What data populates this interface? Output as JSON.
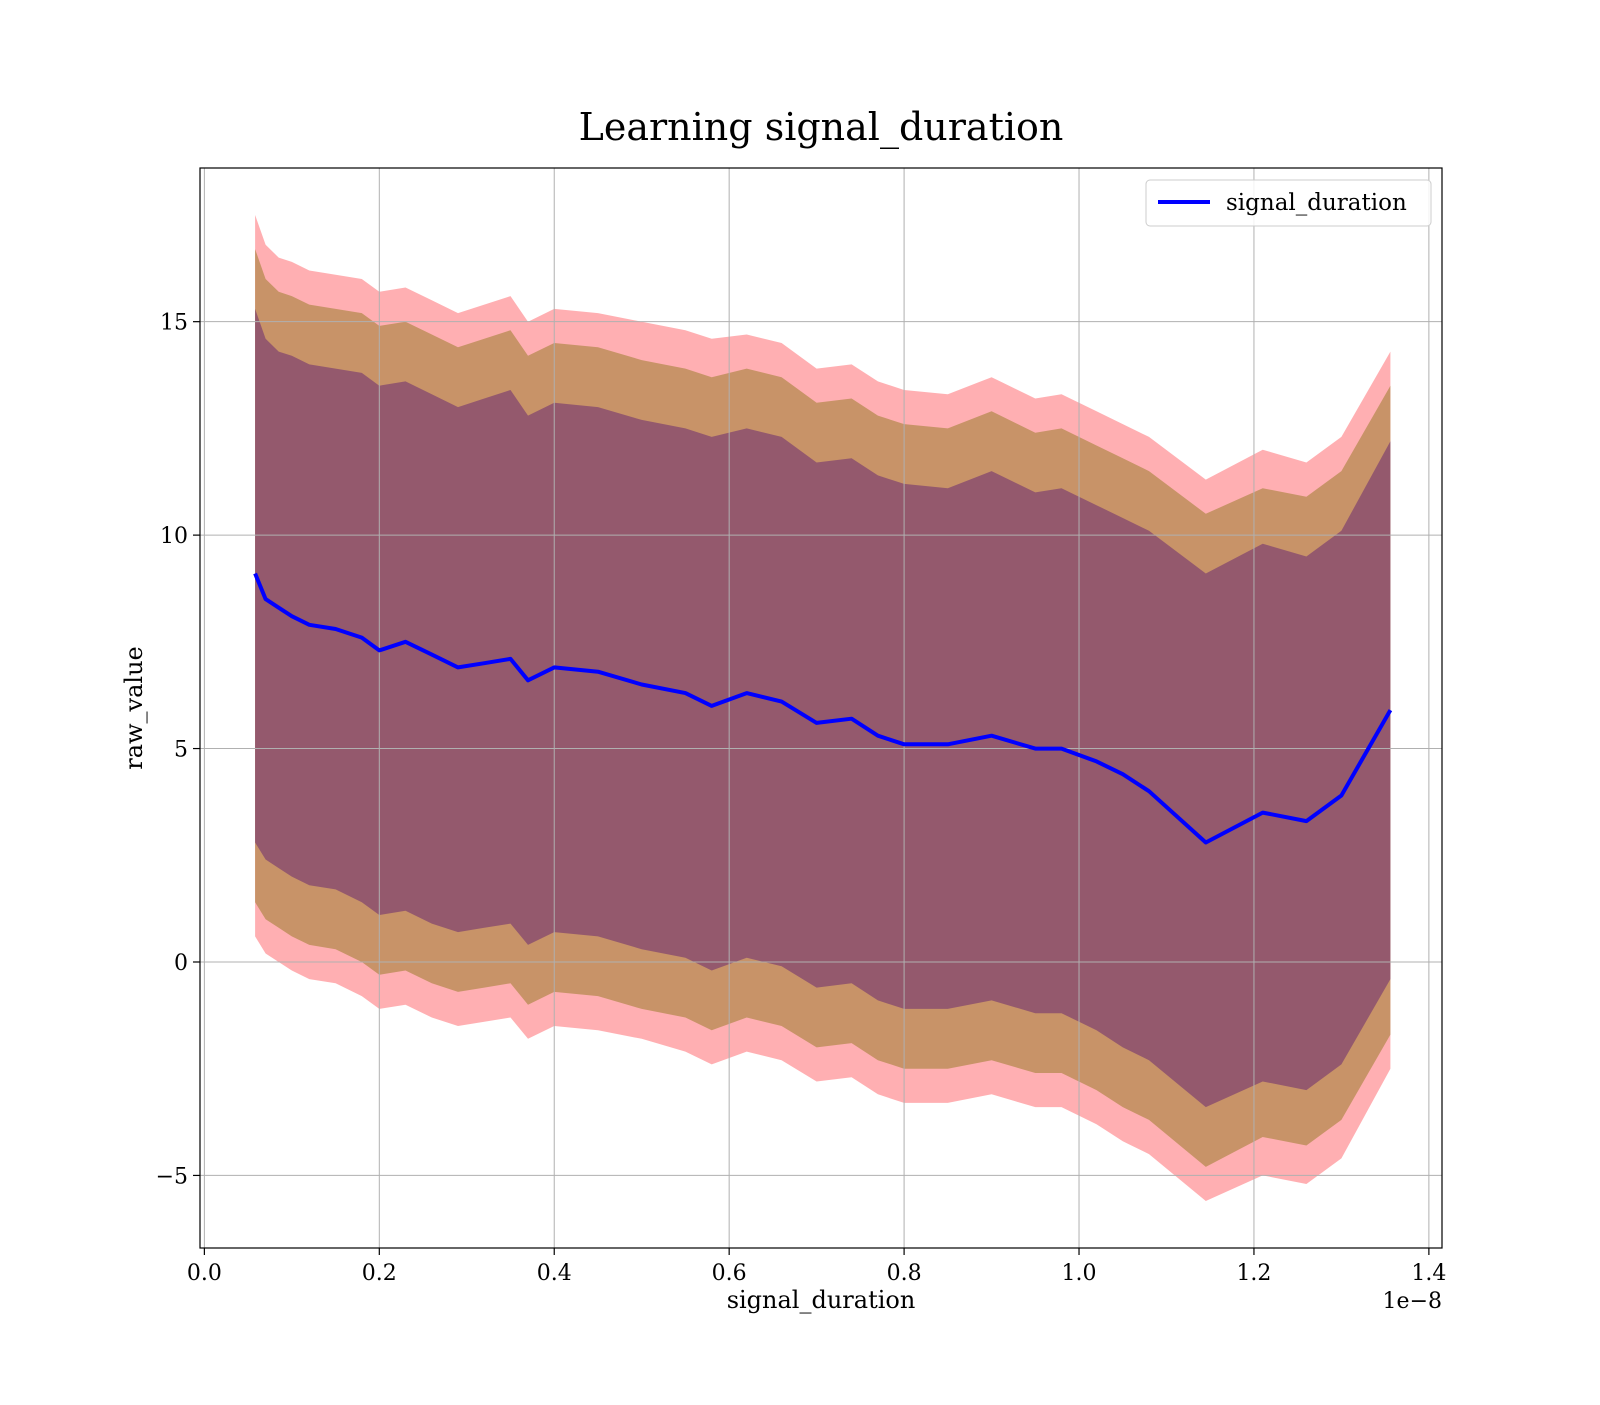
{
  "chart_data": {
    "type": "line",
    "title": "Learning signal_duration",
    "xlabel": "signal_duration",
    "ylabel": "raw_value",
    "x_offset_label": "1e−8",
    "xlim": [
      -0.005,
      1.415
    ],
    "ylim": [
      -6.7,
      18.6
    ],
    "x_ticks": [
      0.0,
      0.2,
      0.4,
      0.6,
      0.8,
      1.0,
      1.2,
      1.4
    ],
    "x_tick_labels": [
      "0.0",
      "0.2",
      "0.4",
      "0.6",
      "0.8",
      "1.0",
      "1.2",
      "1.4"
    ],
    "y_ticks": [
      -5,
      0,
      5,
      10,
      15
    ],
    "y_tick_labels": [
      "−5",
      "0",
      "5",
      "10",
      "15"
    ],
    "grid": true,
    "legend": {
      "position": "top-right",
      "entries": [
        "signal_duration"
      ]
    },
    "colors": {
      "line": "#0000ff",
      "outer_band": "#ff6e73",
      "middle_band": "#b5894f",
      "inner_band": "#8b4f6e",
      "grid": "#b0b0b0"
    },
    "x": [
      0.058,
      0.07,
      0.085,
      0.1,
      0.12,
      0.15,
      0.18,
      0.2,
      0.23,
      0.26,
      0.29,
      0.32,
      0.35,
      0.37,
      0.4,
      0.45,
      0.5,
      0.55,
      0.58,
      0.62,
      0.66,
      0.7,
      0.74,
      0.77,
      0.8,
      0.85,
      0.9,
      0.95,
      0.98,
      1.02,
      1.05,
      1.08,
      1.145,
      1.21,
      1.26,
      1.3,
      1.356
    ],
    "series": [
      {
        "name": "signal_duration",
        "values": [
          9.1,
          8.5,
          8.3,
          8.1,
          7.9,
          7.8,
          7.6,
          7.3,
          7.5,
          7.2,
          6.9,
          7.0,
          7.1,
          6.6,
          6.9,
          6.8,
          6.5,
          6.3,
          6.0,
          6.3,
          6.1,
          5.6,
          5.7,
          5.3,
          5.1,
          5.1,
          5.3,
          5.0,
          5.0,
          4.7,
          4.4,
          4.0,
          2.8,
          3.5,
          3.3,
          3.9,
          5.9
        ]
      }
    ],
    "bands": [
      {
        "level": "outer",
        "upper": [
          17.5,
          16.8,
          16.5,
          16.4,
          16.2,
          16.1,
          16.0,
          15.7,
          15.8,
          15.5,
          15.2,
          15.4,
          15.6,
          15.0,
          15.3,
          15.2,
          15.0,
          14.8,
          14.6,
          14.7,
          14.5,
          13.9,
          14.0,
          13.6,
          13.4,
          13.3,
          13.7,
          13.2,
          13.3,
          12.9,
          12.6,
          12.3,
          11.3,
          12.0,
          11.7,
          12.3,
          14.3
        ],
        "lower": [
          0.6,
          0.2,
          0.0,
          -0.2,
          -0.4,
          -0.5,
          -0.8,
          -1.1,
          -1.0,
          -1.3,
          -1.5,
          -1.4,
          -1.3,
          -1.8,
          -1.5,
          -1.6,
          -1.8,
          -2.1,
          -2.4,
          -2.1,
          -2.3,
          -2.8,
          -2.7,
          -3.1,
          -3.3,
          -3.3,
          -3.1,
          -3.4,
          -3.4,
          -3.8,
          -4.2,
          -4.5,
          -5.6,
          -5.0,
          -5.2,
          -4.6,
          -2.5
        ]
      },
      {
        "level": "middle",
        "upper": [
          16.7,
          16.0,
          15.7,
          15.6,
          15.4,
          15.3,
          15.2,
          14.9,
          15.0,
          14.7,
          14.4,
          14.6,
          14.8,
          14.2,
          14.5,
          14.4,
          14.1,
          13.9,
          13.7,
          13.9,
          13.7,
          13.1,
          13.2,
          12.8,
          12.6,
          12.5,
          12.9,
          12.4,
          12.5,
          12.1,
          11.8,
          11.5,
          10.5,
          11.1,
          10.9,
          11.5,
          13.5
        ],
        "lower": [
          1.4,
          1.0,
          0.8,
          0.6,
          0.4,
          0.3,
          0.0,
          -0.3,
          -0.2,
          -0.5,
          -0.7,
          -0.6,
          -0.5,
          -1.0,
          -0.7,
          -0.8,
          -1.1,
          -1.3,
          -1.6,
          -1.3,
          -1.5,
          -2.0,
          -1.9,
          -2.3,
          -2.5,
          -2.5,
          -2.3,
          -2.6,
          -2.6,
          -3.0,
          -3.4,
          -3.7,
          -4.8,
          -4.1,
          -4.3,
          -3.7,
          -1.7
        ]
      },
      {
        "level": "inner",
        "upper": [
          15.3,
          14.6,
          14.3,
          14.2,
          14.0,
          13.9,
          13.8,
          13.5,
          13.6,
          13.3,
          13.0,
          13.2,
          13.4,
          12.8,
          13.1,
          13.0,
          12.7,
          12.5,
          12.3,
          12.5,
          12.3,
          11.7,
          11.8,
          11.4,
          11.2,
          11.1,
          11.5,
          11.0,
          11.1,
          10.7,
          10.4,
          10.1,
          9.1,
          9.8,
          9.5,
          10.1,
          12.2
        ],
        "lower": [
          2.8,
          2.4,
          2.2,
          2.0,
          1.8,
          1.7,
          1.4,
          1.1,
          1.2,
          0.9,
          0.7,
          0.8,
          0.9,
          0.4,
          0.7,
          0.6,
          0.3,
          0.1,
          -0.2,
          0.1,
          -0.1,
          -0.6,
          -0.5,
          -0.9,
          -1.1,
          -1.1,
          -0.9,
          -1.2,
          -1.2,
          -1.6,
          -2.0,
          -2.3,
          -3.4,
          -2.8,
          -3.0,
          -2.4,
          -0.4
        ]
      }
    ]
  }
}
